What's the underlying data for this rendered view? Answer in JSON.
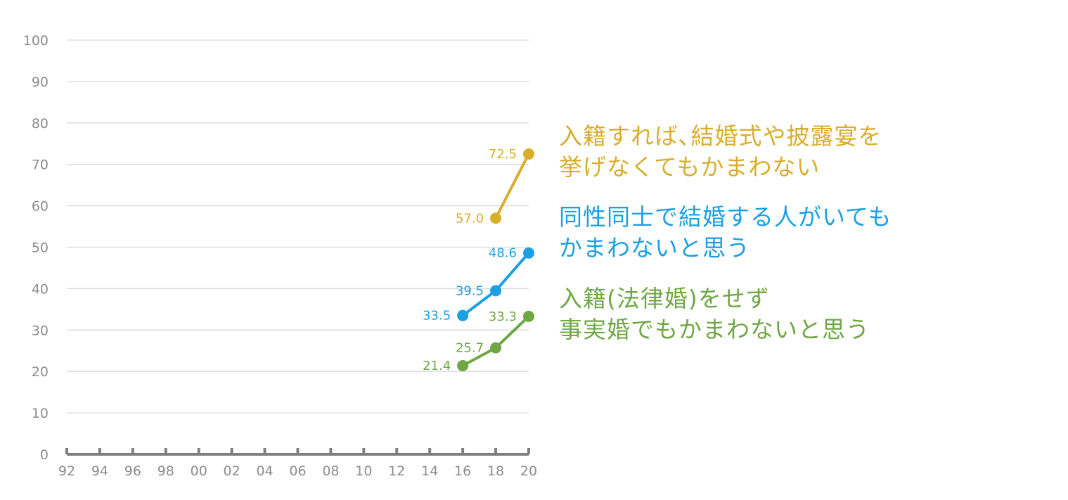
{
  "chart_data": {
    "type": "line",
    "x": [
      "92",
      "94",
      "96",
      "98",
      "00",
      "02",
      "04",
      "06",
      "08",
      "10",
      "12",
      "14",
      "16",
      "18",
      "20"
    ],
    "ylim": [
      0,
      100
    ],
    "yticks": [
      0,
      10,
      20,
      30,
      40,
      50,
      60,
      70,
      80,
      90,
      100
    ],
    "grid": true,
    "legend_placement": "right",
    "series": [
      {
        "name_lines": [
          "入籍すれば､結婚式や披露宴を",
          "挙げなくてもかまわない"
        ],
        "color": "#D9AE2B",
        "points": [
          {
            "x": "18",
            "y": 57.0,
            "label": "57.0"
          },
          {
            "x": "20",
            "y": 72.5,
            "label": "72.5"
          }
        ]
      },
      {
        "name_lines": [
          "同性同士で結婚する人がいても",
          "かまわないと思う"
        ],
        "color": "#1AA0E3",
        "points": [
          {
            "x": "16",
            "y": 33.5,
            "label": "33.5"
          },
          {
            "x": "18",
            "y": 39.5,
            "label": "39.5"
          },
          {
            "x": "20",
            "y": 48.6,
            "label": "48.6"
          }
        ]
      },
      {
        "name_lines": [
          "入籍(法律婚)をせず",
          "事実婚でもかまわないと思う"
        ],
        "color": "#6FA744",
        "points": [
          {
            "x": "16",
            "y": 21.4,
            "label": "21.4"
          },
          {
            "x": "18",
            "y": 25.7,
            "label": "25.7"
          },
          {
            "x": "20",
            "y": 33.3,
            "label": "33.3"
          }
        ]
      }
    ]
  },
  "style": {
    "grid_color": "#D9D9D9",
    "axis_color": "#7F7F7F",
    "tick_text_color": "#8C8C8C"
  }
}
